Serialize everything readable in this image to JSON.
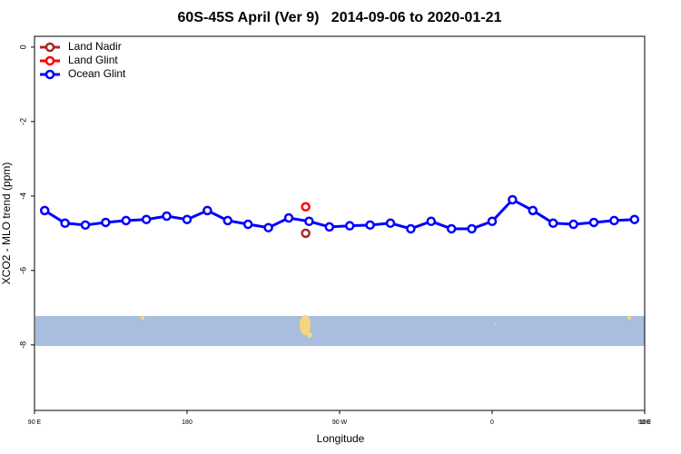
{
  "chart_data": {
    "type": "line",
    "title": "60S-45S April (Ver 9)   2014-09-06 to 2020-01-21",
    "x_label": "Longitude",
    "y_label": "XCO2 - MLO trend (ppm)",
    "xlim": [
      90,
      450
    ],
    "ylim": [
      -9.76,
      0.29
    ],
    "xticks": [
      {
        "value": 90,
        "label": "90 E"
      },
      {
        "value": 180,
        "label": "180"
      },
      {
        "value": 270,
        "label": "90 W"
      },
      {
        "value": 360,
        "label": "0"
      },
      {
        "value": 450,
        "label": "90 E"
      },
      {
        "value": 540,
        "label": "180"
      }
    ],
    "yticks": [
      0,
      -2,
      -4,
      -6,
      -8
    ],
    "legend": "top-left",
    "series": [
      {
        "name": "Land Nadir",
        "color": "#a52a2a",
        "x": [
          250
        ],
        "values": [
          -5.0
        ]
      },
      {
        "name": "Land Glint",
        "color": "#ff0000",
        "x": [
          250
        ],
        "values": [
          -4.29
        ]
      },
      {
        "name": "Ocean Glint",
        "color": "#0000ff",
        "x": [
          96,
          108,
          120,
          132,
          144,
          156,
          168,
          180,
          192,
          204,
          216,
          228,
          240,
          252,
          264,
          276,
          288,
          300,
          312,
          324,
          336,
          348,
          360,
          372,
          384,
          396,
          408,
          420,
          432,
          444
        ],
        "values": [
          -4.39,
          -4.73,
          -4.78,
          -4.71,
          -4.66,
          -4.63,
          -4.54,
          -4.63,
          -4.39,
          -4.66,
          -4.76,
          -4.85,
          -4.59,
          -4.68,
          -4.83,
          -4.8,
          -4.78,
          -4.73,
          -4.88,
          -4.68,
          -4.88,
          -4.88,
          -4.68,
          -4.1,
          -4.39,
          -4.73,
          -4.76,
          -4.71,
          -4.66,
          -4.63
        ]
      }
    ]
  }
}
